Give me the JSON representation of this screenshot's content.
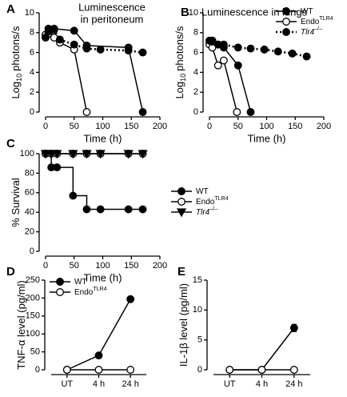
{
  "chart_data": [
    {
      "type": "line",
      "panel": "A",
      "title": [
        "Luminescence",
        "in peritoneum"
      ],
      "x_label": "Time (h)",
      "y_label": "Log",
      "y_label_sub": "10",
      "y_label_rest": "photons/s",
      "xlim": [
        0,
        200
      ],
      "xticks": [
        0,
        50,
        100,
        150,
        200
      ],
      "ylim": [
        0,
        10
      ],
      "yticks": [
        0,
        2,
        4,
        6,
        8,
        10
      ],
      "series": [
        {
          "color": "#000000",
          "marker": "circle",
          "marker_fill": "#000000",
          "dash": false,
          "x": [
            0,
            5,
            15,
            50,
            72,
            145,
            170
          ],
          "values": [
            7.7,
            8.4,
            8.4,
            8.2,
            6.7,
            6.5,
            0
          ]
        },
        {
          "color": "#000000",
          "marker": "circle",
          "marker_fill": "#ffffff",
          "dash": false,
          "x": [
            0,
            5,
            15,
            25,
            50,
            72
          ],
          "values": [
            7.8,
            7.9,
            7.5,
            7.0,
            6.3,
            0
          ]
        },
        {
          "color": "#000000",
          "marker": "circle",
          "marker_fill": "#000000",
          "dash": true,
          "x": [
            0,
            5,
            15,
            25,
            50,
            72,
            96,
            145,
            170
          ],
          "values": [
            7.5,
            8.1,
            8.3,
            7.3,
            6.8,
            6.4,
            6.3,
            6.2,
            6.0
          ]
        }
      ]
    },
    {
      "type": "line",
      "panel": "B",
      "title": [
        "Luminescence in lungs"
      ],
      "x_label": "Time (h)",
      "y_label": "Log",
      "y_label_sub": "10",
      "y_label_rest": "photons/s",
      "xlim": [
        0,
        200
      ],
      "xticks": [
        0,
        50,
        100,
        150,
        200
      ],
      "ylim": [
        0,
        10
      ],
      "yticks": [
        0,
        2,
        4,
        6,
        8,
        10
      ],
      "legend": "upper right",
      "series": [
        {
          "name": "WT",
          "color": "#000000",
          "marker": "circle",
          "marker_fill": "#000000",
          "dash": false,
          "x": [
            0,
            5,
            15,
            25,
            50,
            72
          ],
          "values": [
            7.0,
            7.2,
            6.8,
            6.5,
            4.7,
            0
          ]
        },
        {
          "name": "Endo",
          "name_sup": "TLR4",
          "color": "#000000",
          "marker": "circle",
          "marker_fill": "#ffffff",
          "dash": false,
          "x": [
            0,
            5,
            15,
            25,
            48
          ],
          "values": [
            6.8,
            6.5,
            4.7,
            5.2,
            0
          ]
        },
        {
          "name": "Tlr4",
          "name_sup": "–/–",
          "name_italic": true,
          "color": "#000000",
          "marker": "circle",
          "marker_fill": "#000000",
          "dash": true,
          "x": [
            0,
            5,
            15,
            25,
            50,
            72,
            96,
            120,
            145,
            170
          ],
          "values": [
            7.2,
            7.1,
            6.8,
            6.8,
            6.5,
            6.4,
            6.3,
            6.1,
            5.9,
            5.6
          ]
        }
      ]
    },
    {
      "type": "step",
      "panel": "C",
      "x_label": "Time (h)",
      "y_label": "% Survival",
      "xlim": [
        0,
        200
      ],
      "xticks": [
        0,
        50,
        100,
        150,
        200
      ],
      "ylim": [
        0,
        100
      ],
      "yticks": [
        0,
        20,
        40,
        60,
        80,
        100
      ],
      "legend": "center right",
      "series": [
        {
          "name": "WT",
          "color": "#000000",
          "marker": "circle",
          "marker_fill": "#000000",
          "dash": false,
          "x": [
            0,
            10,
            20,
            48,
            72,
            96,
            145,
            170
          ],
          "values": [
            100,
            86,
            86,
            57,
            43,
            43,
            43,
            43
          ]
        },
        {
          "name": "Endo",
          "name_sup": "TLR4",
          "color": "#000000",
          "marker": "circle",
          "marker_fill": "#ffffff",
          "dash": false,
          "x": [
            0,
            10,
            20,
            48,
            72,
            96,
            145,
            170
          ],
          "values": [
            100,
            100,
            100,
            100,
            100,
            100,
            100,
            100
          ]
        },
        {
          "name": "Tlr4",
          "name_sup": "–/–",
          "name_italic": true,
          "color": "#000000",
          "marker": "triangle",
          "marker_fill": "#000000",
          "dash": false,
          "x": [
            0,
            10,
            20,
            48,
            72,
            96,
            145,
            170
          ],
          "values": [
            100,
            100,
            100,
            100,
            100,
            100,
            100,
            100
          ]
        }
      ]
    },
    {
      "type": "line",
      "panel": "D",
      "y_label": "TNF-α level (pg/ml)",
      "categories": [
        "UT",
        "4 h",
        "24 h"
      ],
      "ylim": [
        0,
        250
      ],
      "yticks": [
        0,
        50,
        100,
        150,
        200,
        250
      ],
      "legend": "upper left",
      "series": [
        {
          "name": "WT",
          "color": "#000000",
          "marker": "circle",
          "marker_fill": "#000000",
          "dash": false,
          "values": [
            0,
            40,
            197
          ]
        },
        {
          "name": "Endo",
          "name_sup": "TLR4",
          "color": "#000000",
          "marker": "circle",
          "marker_fill": "#ffffff",
          "dash": false,
          "values": [
            0,
            0,
            0
          ]
        }
      ]
    },
    {
      "type": "line",
      "panel": "E",
      "y_label": "IL-1β level (pg/ml)",
      "categories": [
        "UT",
        "4 h",
        "24 h"
      ],
      "ylim": [
        0,
        15
      ],
      "yticks": [
        0,
        5,
        10,
        15
      ],
      "series": [
        {
          "color": "#000000",
          "marker": "circle",
          "marker_fill": "#000000",
          "dash": false,
          "values": [
            0,
            0,
            7
          ],
          "errors": [
            null,
            null,
            0.6
          ]
        },
        {
          "color": "#000000",
          "marker": "circle",
          "marker_fill": "#ffffff",
          "dash": false,
          "values": [
            0,
            0,
            0
          ]
        }
      ]
    }
  ]
}
